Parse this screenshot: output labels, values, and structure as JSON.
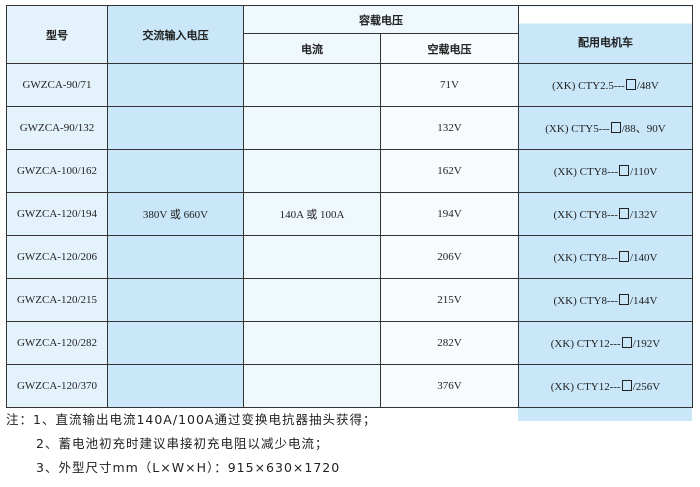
{
  "headers": {
    "model": "型号",
    "ac_input": "交流输入电压",
    "load_voltage": "容载电压",
    "current": "电流",
    "no_load_voltage": "空载电压",
    "vehicle": "配用电机车"
  },
  "merged": {
    "ac_input": "380V 或 660V",
    "current": "140A 或 100A"
  },
  "rows": [
    {
      "model": "GWZCA-90/71",
      "no_load": "71V",
      "vehicle_pre": "(XK) CTY2.5---",
      "vehicle_post": "/48V"
    },
    {
      "model": "GWZCA-90/132",
      "no_load": "132V",
      "vehicle_pre": "(XK) CTY5---",
      "vehicle_post": "/88、90V"
    },
    {
      "model": "GWZCA-100/162",
      "no_load": "162V",
      "vehicle_pre": "(XK) CTY8---",
      "vehicle_post": "/110V"
    },
    {
      "model": "GWZCA-120/194",
      "no_load": "194V",
      "vehicle_pre": "(XK) CTY8---",
      "vehicle_post": "/132V"
    },
    {
      "model": "GWZCA-120/206",
      "no_load": "206V",
      "vehicle_pre": "(XK) CTY8---",
      "vehicle_post": "/140V"
    },
    {
      "model": "GWZCA-120/215",
      "no_load": "215V",
      "vehicle_pre": "(XK) CTY8---",
      "vehicle_post": "/144V"
    },
    {
      "model": "GWZCA-120/282",
      "no_load": "282V",
      "vehicle_pre": "(XK) CTY12---",
      "vehicle_post": "/192V"
    },
    {
      "model": "GWZCA-120/370",
      "no_load": "376V",
      "vehicle_pre": "(XK) CTY12---",
      "vehicle_post": "/256V"
    }
  ],
  "notes": [
    "注：1、直流输出电流140A/100A通过变换电抗器抽头获得；",
    "2、蓄电池初充时建议串接初充电阻以减少电流；",
    "3、外型尺寸mm（L×W×H）：915×630×1720"
  ],
  "colors": {
    "light_blue": "#e4f2fb",
    "blue": "#c9e7f8",
    "border": "#333333"
  }
}
